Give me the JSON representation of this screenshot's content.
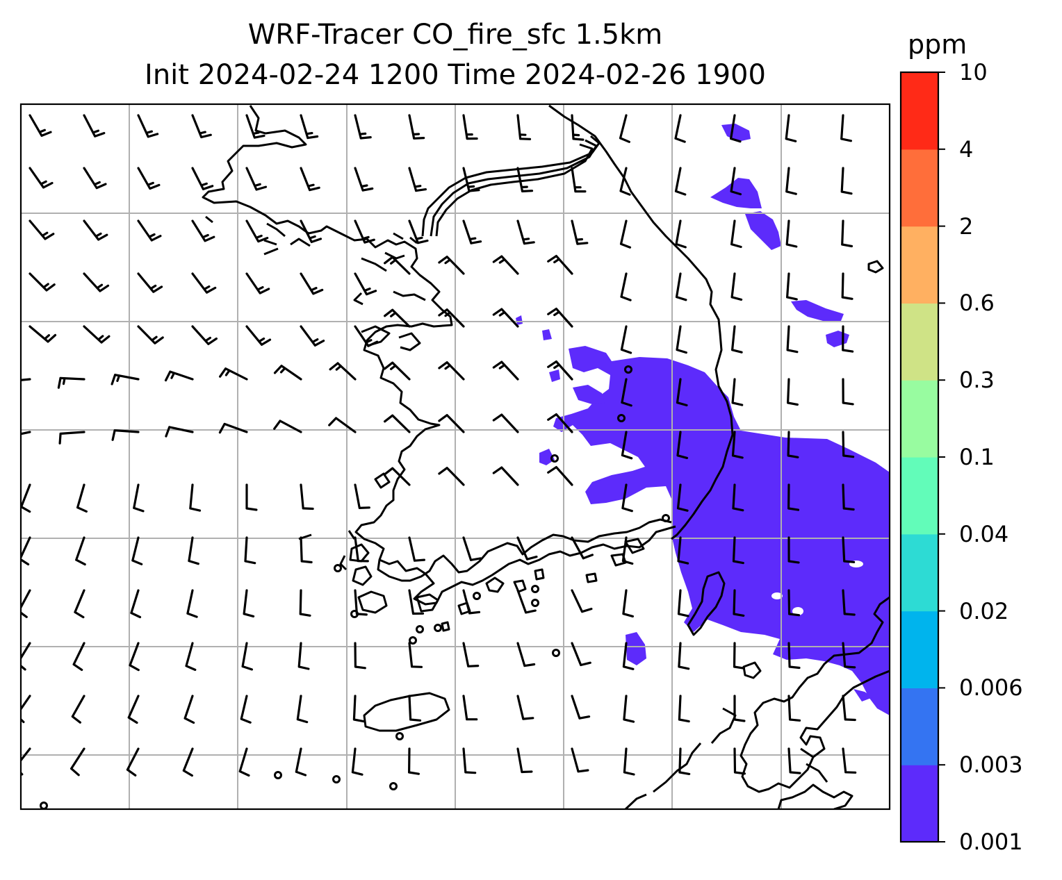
{
  "title": {
    "line1": "WRF-Tracer CO_fire_sfc 1.5km",
    "line2": "Init 2024-02-24 1200 Time 2024-02-26 1900"
  },
  "colorbar": {
    "unit": "ppm",
    "levels": [
      "0.001",
      "0.003",
      "0.006",
      "0.02",
      "0.04",
      "0.1",
      "0.3",
      "0.6",
      "2",
      "4",
      "10"
    ],
    "colors": [
      "#5d2bfb",
      "#3474f2",
      "#00b4ed",
      "#2ddbd4",
      "#62fcb9",
      "#98fca0",
      "#cfe386",
      "#ffb061",
      "#ff6e3a",
      "#ff2a17"
    ]
  },
  "map": {
    "frame_color": "#000000",
    "grid_color": "#b0b0b0",
    "fill_color": "#5d2bfb",
    "barb_color": "#000000",
    "coast_color": "#000000"
  }
}
